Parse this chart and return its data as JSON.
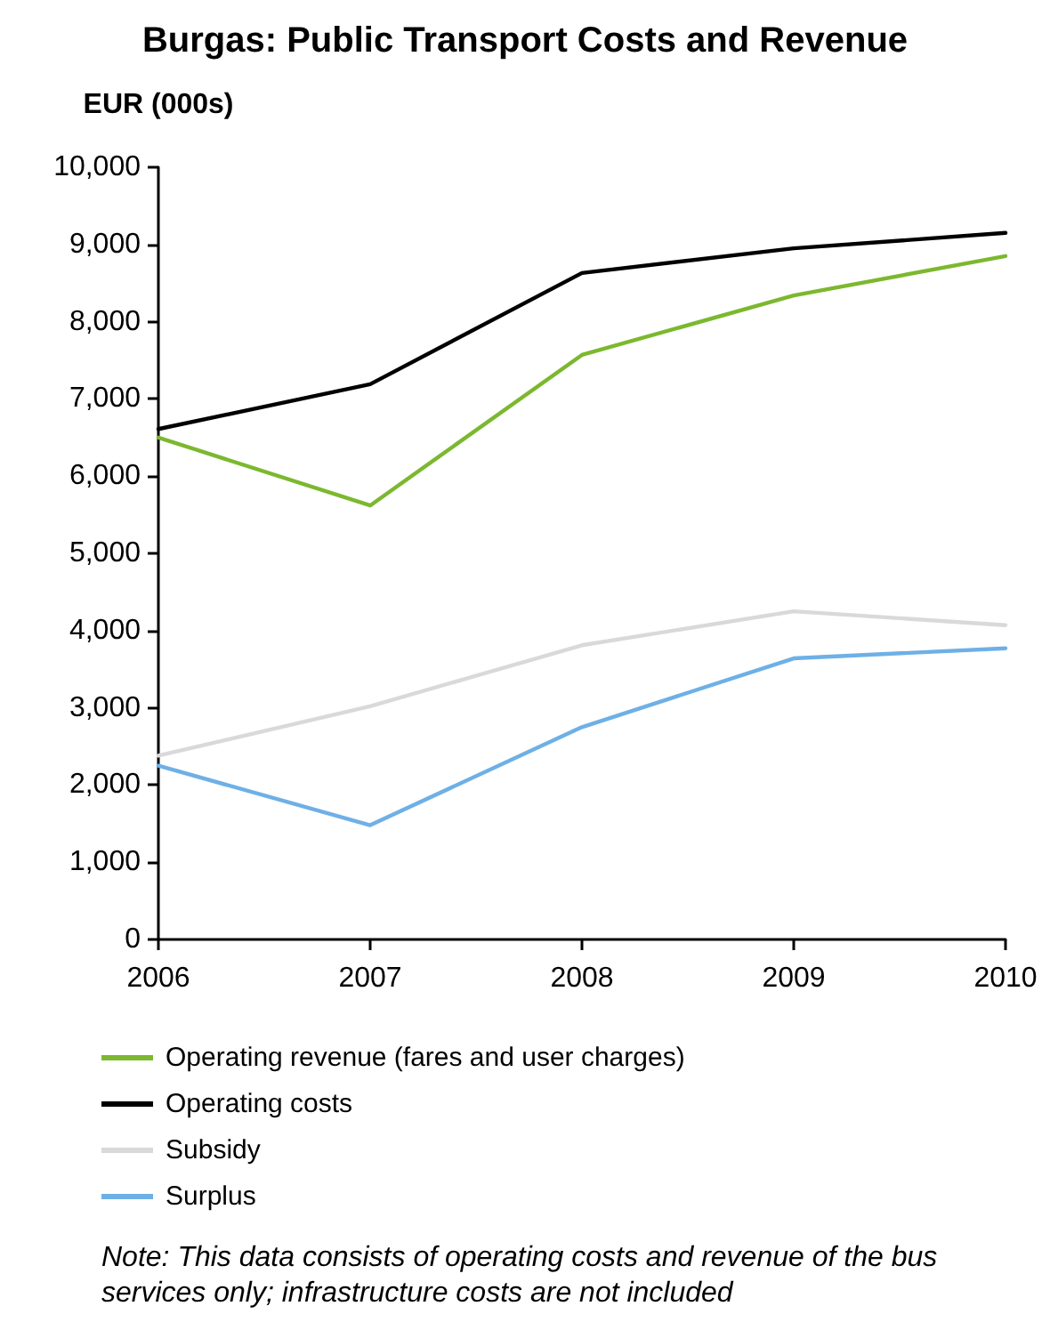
{
  "chart_data": {
    "type": "line",
    "title": "Burgas: Public Transport Costs and Revenue",
    "ylabel": "EUR (000s)",
    "categories": [
      "2006",
      "2007",
      "2008",
      "2009",
      "2010"
    ],
    "series": [
      {
        "name": "Operating revenue (fares and user charges)",
        "color": "#7cb82f",
        "values": [
          6500,
          5620,
          7570,
          8340,
          8850
        ]
      },
      {
        "name": "Operating costs",
        "color": "#000000",
        "values": [
          6610,
          7190,
          8630,
          8950,
          9150
        ]
      },
      {
        "name": "Subsidy",
        "color": "#d9d9d9",
        "values": [
          2380,
          3020,
          3810,
          4250,
          4070
        ]
      },
      {
        "name": "Surplus",
        "color": "#6eb0e6",
        "values": [
          2250,
          1480,
          2750,
          3640,
          3770
        ]
      }
    ],
    "ylim": [
      0,
      10000
    ],
    "yticks": [
      0,
      {
        "value": 1000,
        "label": "1,000"
      },
      {
        "value": 2000,
        "label": "2,000"
      },
      {
        "value": 3000,
        "label": "3,000"
      },
      {
        "value": 4000,
        "label": "4,000"
      },
      {
        "value": 5000,
        "label": "5,000"
      },
      {
        "value": 6000,
        "label": "6,000"
      },
      {
        "value": 7000,
        "label": "7,000"
      },
      {
        "value": 8000,
        "label": "8,000"
      },
      {
        "value": 9000,
        "label": "9,000"
      },
      {
        "value": 10000,
        "label": "10,000"
      }
    ],
    "grid": false,
    "legend": "bottom",
    "annotations": [
      "Note: This data consists of operating costs and revenue of the bus services only; infrastructure costs are not included"
    ]
  }
}
